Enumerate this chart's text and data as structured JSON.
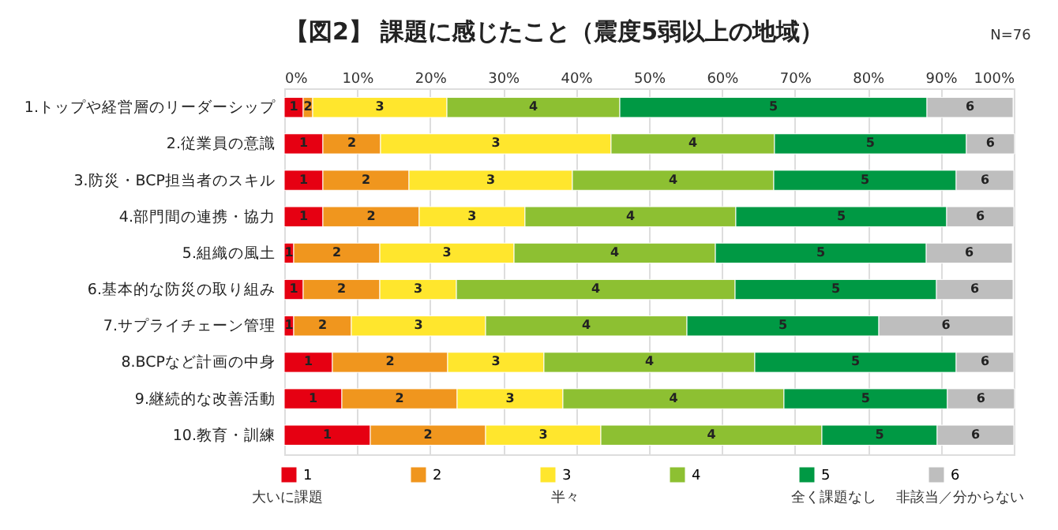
{
  "chart_data": {
    "type": "bar",
    "orientation": "horizontal",
    "stacked": true,
    "title": "【図2】 課題に感じたこと（震度5弱以上の地域）",
    "categories": [
      "1.トップや経営層のリーダーシップ",
      "2.従業員の意識",
      "3.防災・BCP担当者のスキル",
      "4.部門間の連携・協力",
      "5.組織の風土",
      "6.基本的な防災の取り組み",
      "7.サプライチェーン管理",
      "8.BCPなど計画の中身",
      "9.継続的な改善活動",
      "10.教育・訓練"
    ],
    "series": [
      {
        "name": "1",
        "color": "#e60012",
        "values": [
          2.6,
          5.3,
          5.3,
          5.3,
          1.3,
          2.6,
          1.3,
          6.6,
          7.9,
          11.8
        ]
      },
      {
        "name": "2",
        "color": "#f0961e",
        "values": [
          1.3,
          7.9,
          11.8,
          13.2,
          11.8,
          10.5,
          7.9,
          15.8,
          15.8,
          15.8
        ]
      },
      {
        "name": "3",
        "color": "#ffe62d",
        "values": [
          18.4,
          31.6,
          22.4,
          14.5,
          18.4,
          10.5,
          18.4,
          13.2,
          14.5,
          15.8
        ]
      },
      {
        "name": "4",
        "color": "#8dc032",
        "values": [
          23.7,
          22.4,
          27.6,
          28.9,
          27.6,
          38.2,
          27.6,
          28.9,
          30.3,
          30.3
        ]
      },
      {
        "name": "5",
        "color": "#009944",
        "values": [
          42.1,
          26.3,
          25.0,
          28.9,
          28.9,
          27.6,
          26.3,
          27.6,
          22.4,
          15.8
        ]
      },
      {
        "name": "6",
        "color": "#bebebe",
        "values": [
          11.8,
          6.6,
          7.9,
          9.2,
          11.8,
          10.5,
          18.4,
          7.9,
          9.2,
          10.5
        ]
      }
    ],
    "xlim": [
      0,
      100
    ],
    "xticks": [
      {
        "value": 0,
        "label": "0%"
      },
      {
        "value": 10,
        "label": "10%"
      },
      {
        "value": 20,
        "label": "20%"
      },
      {
        "value": 30,
        "label": "30%"
      },
      {
        "value": 40,
        "label": "40%"
      },
      {
        "value": 50,
        "label": "50%"
      },
      {
        "value": 60,
        "label": "60%"
      },
      {
        "value": 70,
        "label": "70%"
      },
      {
        "value": 80,
        "label": "80%"
      },
      {
        "value": 90,
        "label": "90%"
      },
      {
        "value": 100,
        "label": "100%"
      }
    ],
    "grid": "x",
    "legend": "bottom",
    "annotations": [
      "N=76",
      "大いに課題",
      "半々",
      "全く課題なし",
      "非該当／分からない"
    ]
  }
}
